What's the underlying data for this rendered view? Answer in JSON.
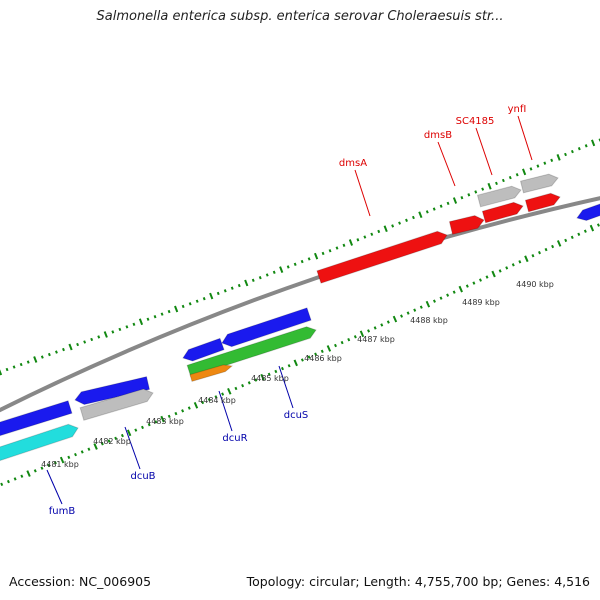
{
  "title": "Salmonella enterica subsp. enterica serovar Choleraesuis str...",
  "accession": "Accession: NC_006905",
  "topology": "Topology: circular; Length: 4,755,700 bp; Genes: 4,516",
  "colors": {
    "forward_gene": "#ee1111",
    "reverse_gene": "#1a1aee",
    "other_gene": "#bdbdbd",
    "cyan_gene": "#22dddd",
    "green_gene": "#33bb33",
    "orange_gene": "#ee8811",
    "backbone": "#888888",
    "tick": "#118811",
    "label_red": "#dd0000",
    "label_blue": "#0000aa"
  },
  "kbp_labels": [
    "4481 kbp",
    "4482 kbp",
    "4483 kbp",
    "4484 kbp",
    "4485 kbp",
    "4486 kbp",
    "4487 kbp",
    "4488 kbp",
    "4489 kbp",
    "4490 kbp"
  ],
  "gene_labels": [
    {
      "text": "dmsA",
      "color": "red"
    },
    {
      "text": "dmsB",
      "color": "red"
    },
    {
      "text": "SC4185",
      "color": "red"
    },
    {
      "text": "ynfI",
      "color": "red"
    },
    {
      "text": "fumB",
      "color": "blue"
    },
    {
      "text": "dcuB",
      "color": "blue"
    },
    {
      "text": "dcuR",
      "color": "blue"
    },
    {
      "text": "dcuS",
      "color": "blue"
    }
  ]
}
